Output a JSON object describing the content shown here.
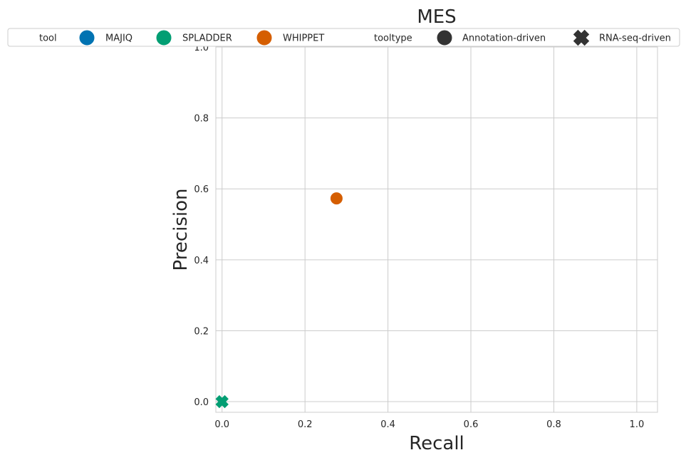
{
  "chart_data": {
    "type": "scatter",
    "title": "MES",
    "xlabel": "Recall",
    "ylabel": "Precision",
    "xlim": [
      -0.015,
      1.05
    ],
    "ylim": [
      -0.03,
      1.0
    ],
    "xticks": [
      0.0,
      0.2,
      0.4,
      0.6,
      0.8,
      1.0
    ],
    "yticks": [
      0.0,
      0.2,
      0.4,
      0.6,
      0.8,
      1.0
    ],
    "grid": true,
    "legend_position": "top",
    "legend": {
      "tool_heading": "tool",
      "tooltype_heading": "tooltype",
      "tools": [
        {
          "name": "MAJIQ",
          "color": "#0173b2"
        },
        {
          "name": "SPLADDER",
          "color": "#029e73"
        },
        {
          "name": "WHIPPET",
          "color": "#d55e00"
        }
      ],
      "tooltypes": [
        {
          "name": "Annotation-driven",
          "marker": "circle"
        },
        {
          "name": "RNA-seq-driven",
          "marker": "x"
        }
      ],
      "marker_color": "#333333"
    },
    "points": [
      {
        "tool": "WHIPPET",
        "tooltype": "Annotation-driven",
        "x": 0.276,
        "y": 0.573,
        "color": "#d55e00",
        "marker": "circle"
      },
      {
        "tool": "SPLADDER",
        "tooltype": "RNA-seq-driven",
        "x": 0.0,
        "y": 0.0,
        "color": "#029e73",
        "marker": "x"
      }
    ]
  }
}
